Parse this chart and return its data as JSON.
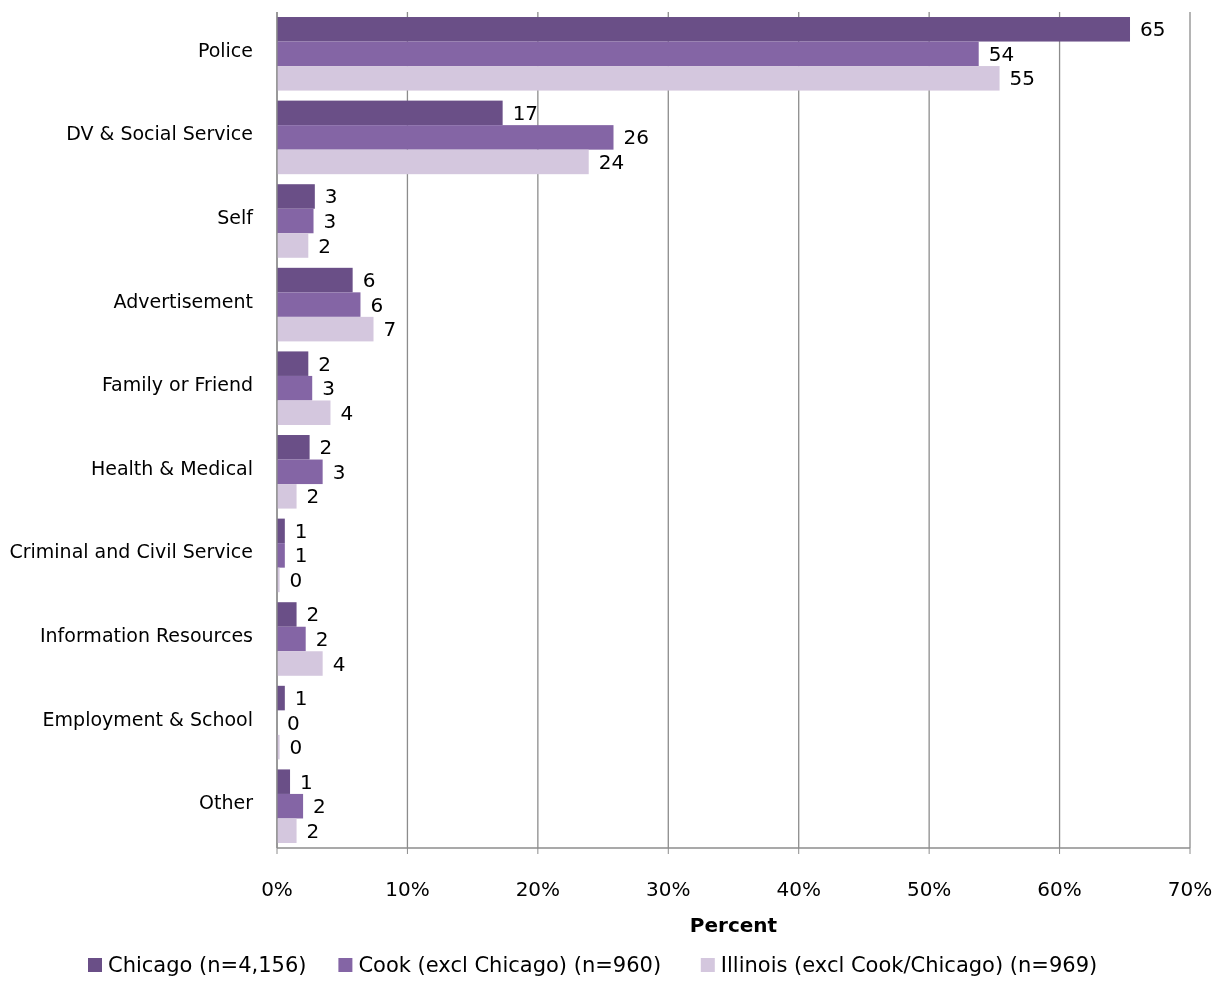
{
  "chart_data": {
    "type": "bar",
    "orientation": "horizontal",
    "xlabel": "Percent",
    "categories": [
      "Police",
      "DV & Social Service",
      "Self",
      "Advertisement",
      "Family or Friend",
      "Health & Medical",
      "Criminal and Civil Service",
      "Information Resources",
      "Employment & School",
      "Other"
    ],
    "series": [
      {
        "name": "Chicago (n=4,156)",
        "color": "#6a4f87",
        "values": [
          65.4,
          17.3,
          2.9,
          5.8,
          2.4,
          2.5,
          0.6,
          1.5,
          0.6,
          1.0
        ],
        "value_labels": [
          "65",
          "17",
          "3",
          "6",
          "2",
          "2",
          "1",
          "2",
          "1",
          "1"
        ]
      },
      {
        "name": "Cook (excl Chicago) (n=960)",
        "color": "#8465a5",
        "values": [
          53.8,
          25.8,
          2.8,
          6.4,
          2.7,
          3.5,
          0.6,
          2.2,
          0.0,
          2.0
        ],
        "value_labels": [
          "54",
          "26",
          "3",
          "6",
          "3",
          "3",
          "1",
          "2",
          "0",
          "2"
        ]
      },
      {
        "name": "Illinois (excl Cook/Chicago) (n=969)",
        "color": "#d4c7de",
        "values": [
          55.4,
          23.9,
          2.4,
          7.4,
          4.1,
          1.5,
          0.2,
          3.5,
          0.2,
          1.5
        ],
        "value_labels": [
          "55",
          "24",
          "2",
          "7",
          "4",
          "2",
          "0",
          "4",
          "0",
          "2"
        ]
      }
    ],
    "xlim": [
      0,
      70
    ],
    "xticks": [
      {
        "value": 0,
        "label": "0%"
      },
      {
        "value": 10,
        "label": "10%"
      },
      {
        "value": 20,
        "label": "20%"
      },
      {
        "value": 30,
        "label": "30%"
      },
      {
        "value": 40,
        "label": "40%"
      },
      {
        "value": 50,
        "label": "50%"
      },
      {
        "value": 60,
        "label": "60%"
      },
      {
        "value": 70,
        "label": "70%"
      }
    ],
    "grid": "x",
    "legend": "bottom"
  }
}
